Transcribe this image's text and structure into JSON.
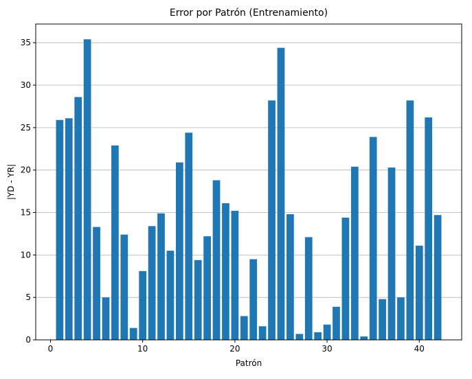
{
  "chart_data": {
    "type": "bar",
    "title": "Error por Patrón (Entrenamiento)",
    "xlabel": "Patrón",
    "ylabel": "|YD - YR|",
    "x": [
      1,
      2,
      3,
      4,
      5,
      6,
      7,
      8,
      9,
      10,
      11,
      12,
      13,
      14,
      15,
      16,
      17,
      18,
      19,
      20,
      21,
      22,
      23,
      24,
      25,
      26,
      27,
      28,
      29,
      30,
      31,
      32,
      33,
      34,
      35,
      36,
      37,
      38,
      39,
      40,
      41,
      42
    ],
    "values": [
      25.9,
      26.1,
      28.6,
      35.4,
      13.3,
      5.0,
      22.9,
      12.4,
      1.4,
      8.1,
      13.4,
      14.9,
      10.5,
      20.9,
      24.4,
      9.4,
      12.2,
      18.8,
      16.1,
      15.2,
      2.8,
      9.5,
      1.6,
      28.2,
      34.4,
      14.8,
      0.7,
      12.1,
      0.9,
      1.8,
      3.9,
      14.4,
      20.4,
      0.4,
      23.9,
      4.8,
      20.3,
      5.0,
      28.2,
      11.1,
      26.2,
      14.7
    ],
    "xlim": [
      -1.6,
      44.6
    ],
    "ylim": [
      0,
      37.2
    ],
    "xticks": [
      0,
      10,
      20,
      30,
      40
    ],
    "yticks": [
      0,
      5,
      10,
      15,
      20,
      25,
      30,
      35
    ],
    "bar_width": 0.8,
    "grid": "y-axis",
    "bar_color": "#1f77b4",
    "grid_color": "#b0b0b0"
  }
}
